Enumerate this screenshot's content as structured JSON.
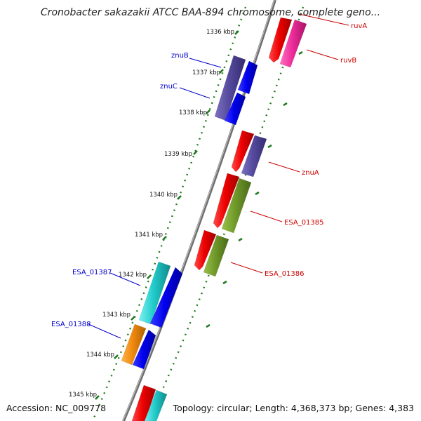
{
  "title": "Cronobacter sakazakii ATCC BAA-894 chromosome, complete geno...",
  "footer": {
    "accession": "Accession: NC_009778",
    "topology": "Topology: circular; Length: 4,368,373 bp; Genes: 4,383"
  },
  "colors": {
    "backbone": "#8c8c8c",
    "tick": "#1f7a1f",
    "label_blue": "#0000cc",
    "label_red": "#cc0000"
  },
  "kbp_labels": [
    "1336 kbp",
    "1337 kbp",
    "1338 kbp",
    "1339 kbp",
    "1340 kbp",
    "1341 kbp",
    "1342 kbp",
    "1343 kbp",
    "1344 kbp",
    "1345 kbp"
  ],
  "gene_labels": [
    {
      "text": "ruvA",
      "color": "#cc0000"
    },
    {
      "text": "ruvB",
      "color": "#cc0000"
    },
    {
      "text": "znuB",
      "color": "#0000cc"
    },
    {
      "text": "znuC",
      "color": "#0000cc"
    },
    {
      "text": "znuA",
      "color": "#cc0000"
    },
    {
      "text": "ESA_01385",
      "color": "#cc0000"
    },
    {
      "text": "ESA_01386",
      "color": "#cc0000"
    },
    {
      "text": "ESA_01387",
      "color": "#0000cc"
    },
    {
      "text": "ESA_01388",
      "color": "#0000cc"
    }
  ]
}
